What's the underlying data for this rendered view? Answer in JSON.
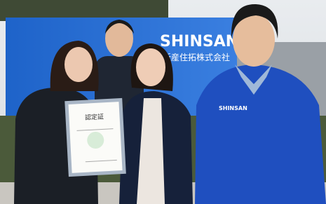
{
  "photo": {
    "sign": {
      "logo": "SHINSAN",
      "company": "新産住拓株式会社"
    },
    "certificate": {
      "title": "認定証"
    },
    "jacket_logo": "SHINSAN"
  }
}
